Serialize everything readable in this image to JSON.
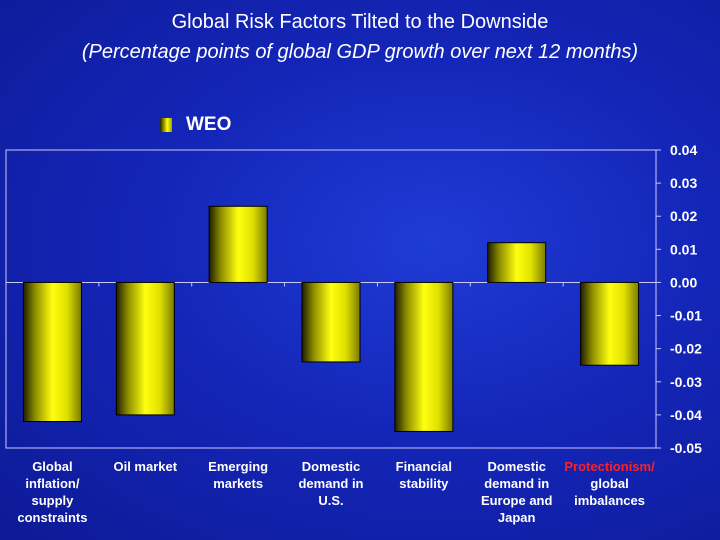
{
  "title": "Global Risk Factors Tilted to the Downside",
  "subtitle": "(Percentage points of global GDP growth over next 12 months)",
  "colors": {
    "background": "#1426b8",
    "bar": "#ffff00",
    "highlight_label": "#ff2020",
    "axis": "#c8c8ff"
  },
  "chart_data": {
    "type": "bar",
    "title": "Global Risk Factors Tilted to the Downside",
    "subtitle": "(Percentage points of global GDP growth over next 12 months)",
    "categories": [
      "Global inflation/ supply constraints",
      "Oil market",
      "Emerging markets",
      "Domestic demand in U.S.",
      "Financial stability",
      "Domestic demand in Europe and Japan",
      "Protectionism/ global imbalances"
    ],
    "category_lines": [
      [
        "Global",
        "inflation/",
        "supply",
        "constraints"
      ],
      [
        "Oil market"
      ],
      [
        "Emerging",
        "markets"
      ],
      [
        "Domestic",
        "demand in",
        "U.S."
      ],
      [
        "Financial",
        "stability"
      ],
      [
        "Domestic",
        "demand in",
        "Europe and",
        "Japan"
      ],
      [
        {
          "text": "Protectionism/",
          "highlight": true
        },
        "global",
        "imbalances"
      ]
    ],
    "series": [
      {
        "name": "WEO",
        "values": [
          -0.042,
          -0.04,
          0.023,
          -0.024,
          -0.045,
          0.012,
          -0.025
        ]
      }
    ],
    "ylim": [
      -0.05,
      0.04
    ],
    "yticks": [
      "0.04",
      "0.03",
      "0.02",
      "0.01",
      "0.00",
      "-0.01",
      "-0.02",
      "-0.03",
      "-0.04",
      "-0.05"
    ],
    "xlabel": "",
    "ylabel": "",
    "grid": false,
    "legend_position": "top-left"
  }
}
